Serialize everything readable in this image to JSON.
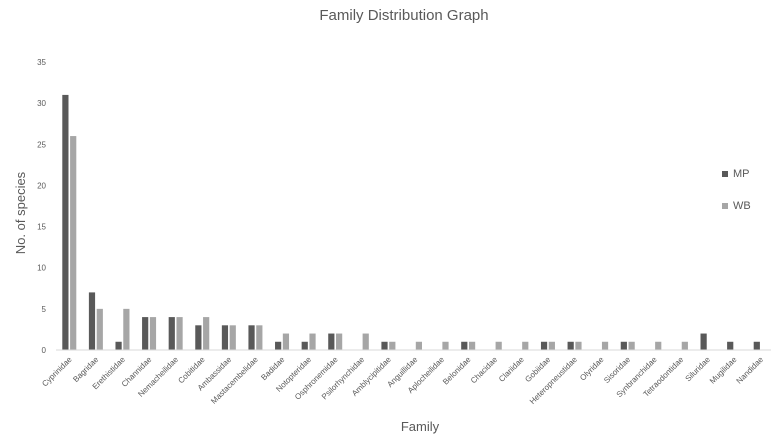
{
  "chart_data": {
    "type": "bar",
    "title": "Family Distribution Graph",
    "xlabel": "Family",
    "ylabel": "No. of species",
    "ylim": [
      0,
      35
    ],
    "yticks": [
      0,
      5,
      10,
      15,
      20,
      25,
      30,
      35
    ],
    "grid": false,
    "legend_position": "right",
    "categories": [
      "Cyprinidae",
      "Bagridae",
      "Erethistidae",
      "Channidae",
      "Nemacheilidae",
      "Cobitidae",
      "Ambassidae",
      "Mastacembelidae",
      "Badidae",
      "Notopteridae",
      "Osphronemidae",
      "Psilorhynchidae",
      "Amblycipitidae",
      "Anguillidae",
      "Aplocheilidae",
      "Belonidae",
      "Chacidae",
      "Clariidae",
      "Gobiidae",
      "Heteropneustidae",
      "Olyridae",
      "Sisoridae",
      "Synbranchidae",
      "Tetraodontidae",
      "Siluridae",
      "Mugilidae",
      "Nandidae"
    ],
    "series": [
      {
        "name": "MP",
        "color": "#595959",
        "values": [
          31,
          7,
          1,
          4,
          4,
          3,
          3,
          3,
          1,
          1,
          2,
          0,
          1,
          0,
          0,
          1,
          0,
          0,
          1,
          1,
          0,
          1,
          0,
          0,
          2,
          1,
          1
        ]
      },
      {
        "name": "WB",
        "color": "#a6a6a6",
        "values": [
          26,
          5,
          5,
          4,
          4,
          4,
          3,
          3,
          2,
          2,
          2,
          2,
          1,
          1,
          1,
          1,
          1,
          1,
          1,
          1,
          1,
          1,
          1,
          1,
          0,
          0,
          0
        ]
      }
    ]
  }
}
